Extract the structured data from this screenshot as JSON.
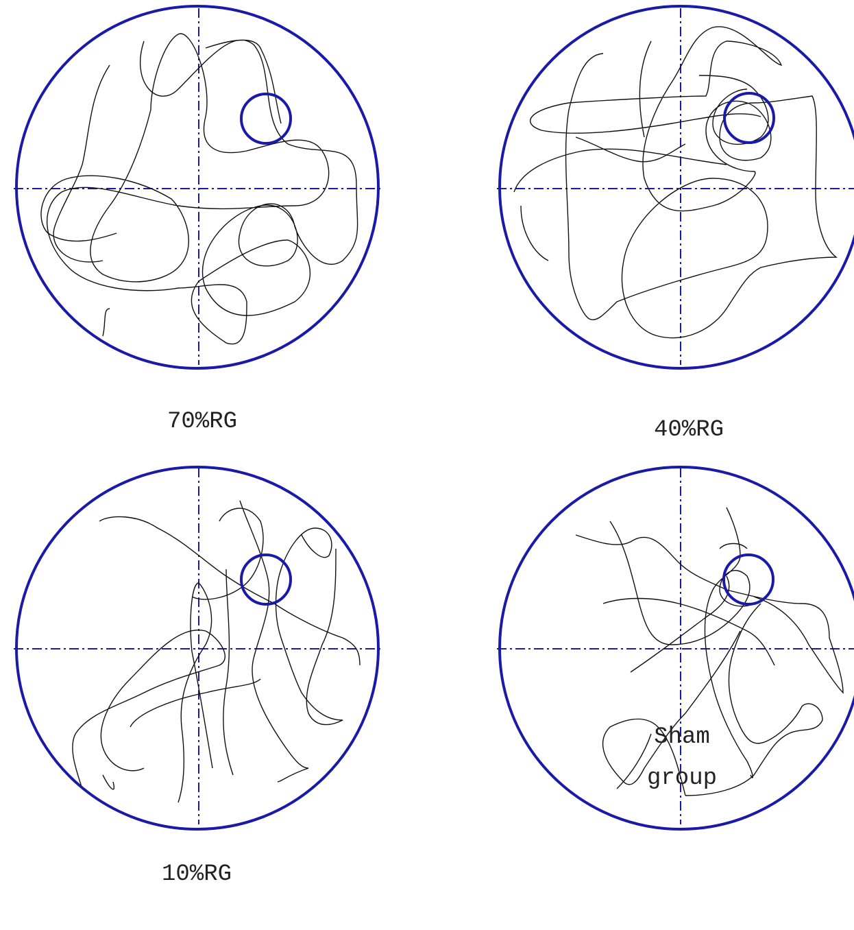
{
  "panels": [
    {
      "label": "70%RG"
    },
    {
      "label": "40%RG"
    },
    {
      "label": "10%RG"
    },
    {
      "label": "Sham group"
    }
  ]
}
